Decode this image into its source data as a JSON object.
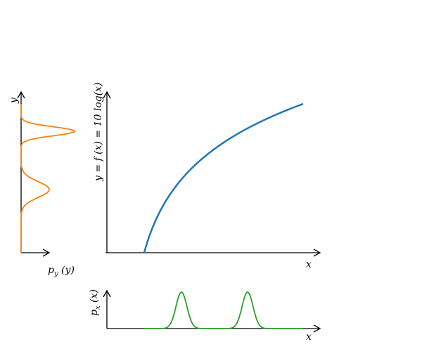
{
  "labels": {
    "main_x": "x",
    "main_y": "y = f (x) = 10 log(x)",
    "left_y": "y",
    "left_x": "p",
    "left_x_sub": "y",
    "left_x_arg": " (y)",
    "bottom_y": "p",
    "bottom_y_sub": "x",
    "bottom_y_arg": " (x)",
    "bottom_x": "x"
  },
  "colors": {
    "main_curve": "#1f77b4",
    "left_density": "#ff7f0e",
    "bottom_density": "#2ca02c",
    "axes": "#000000"
  },
  "chart_data": [
    {
      "type": "line",
      "function": "y = 10 log(x)",
      "x_range": [
        1,
        10
      ],
      "xlabel": "x",
      "ylabel": "y = f (x) = 10 log(x)"
    },
    {
      "type": "line",
      "description_of_shape": "bimodal density p_y(y) along the y axis",
      "modes_y": [
        1.2,
        8.0
      ],
      "ylabel": "y",
      "xlabel": "p_y (y)"
    },
    {
      "type": "line",
      "description_of_shape": "bimodal density p_x(x) along the x axis",
      "modes_x": [
        2.7,
        6.0
      ],
      "xlabel": "x",
      "ylabel": "p_x (x)"
    }
  ]
}
